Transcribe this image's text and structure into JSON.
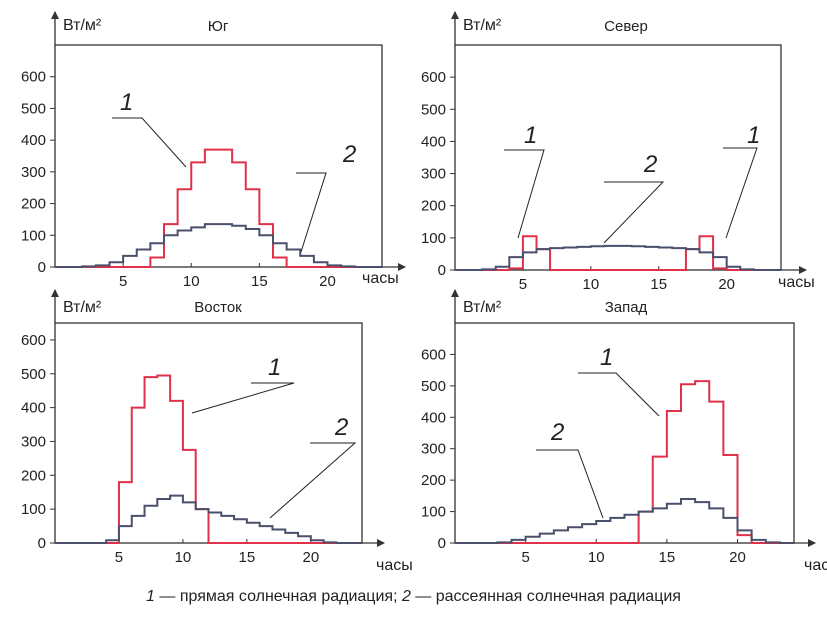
{
  "colors": {
    "direct": "#e0304a",
    "diffuse": "#4a4f6b",
    "axis": "#333333"
  },
  "caption": {
    "n1": "1",
    "t1": " — прямая солнечная радиация; ",
    "n2": "2",
    "t2": " — рассеянная солнечная радиация"
  },
  "chart_data": [
    {
      "type": "line",
      "title": "Юг",
      "ylabel": "Вт/м²",
      "xlabel": "часы",
      "xticks": [
        5,
        10,
        15,
        20
      ],
      "yticks": [
        0,
        100,
        200,
        300,
        400,
        500,
        600
      ],
      "ylim": [
        0,
        700
      ],
      "series_labels": [
        "1",
        "2"
      ],
      "series": [
        {
          "key": "1",
          "values": [
            0,
            0,
            0,
            0,
            0,
            0,
            0,
            30,
            135,
            245,
            330,
            370,
            370,
            330,
            245,
            135,
            30,
            0,
            0,
            0,
            0,
            0,
            0,
            0
          ]
        },
        {
          "key": "2",
          "values": [
            0,
            0,
            2,
            5,
            15,
            35,
            55,
            75,
            100,
            115,
            125,
            135,
            135,
            130,
            120,
            100,
            75,
            55,
            35,
            15,
            5,
            2,
            0,
            0
          ]
        }
      ]
    },
    {
      "type": "line",
      "title": "Север",
      "ylabel": "Вт/м²",
      "xlabel": "часы",
      "xticks": [
        5,
        10,
        15,
        20
      ],
      "yticks": [
        0,
        100,
        200,
        300,
        400,
        500,
        600
      ],
      "ylim": [
        0,
        700
      ],
      "series_labels": [
        "1",
        "1",
        "2"
      ],
      "series": [
        {
          "key": "1",
          "values": [
            0,
            0,
            0,
            0,
            5,
            105,
            65,
            0,
            0,
            0,
            0,
            0,
            0,
            0,
            0,
            0,
            0,
            65,
            105,
            5,
            0,
            0,
            0,
            0
          ]
        },
        {
          "key": "2",
          "values": [
            0,
            0,
            2,
            10,
            40,
            55,
            65,
            68,
            70,
            72,
            74,
            75,
            75,
            74,
            72,
            70,
            68,
            65,
            55,
            40,
            10,
            2,
            0,
            0
          ]
        }
      ]
    },
    {
      "type": "line",
      "title": "Восток",
      "ylabel": "Вт/м²",
      "xlabel": "часы",
      "xticks": [
        5,
        10,
        15,
        20
      ],
      "yticks": [
        0,
        100,
        200,
        300,
        400,
        500,
        600
      ],
      "ylim": [
        0,
        650
      ],
      "series_labels": [
        "1",
        "2"
      ],
      "series": [
        {
          "key": "1",
          "values": [
            0,
            0,
            0,
            0,
            0,
            180,
            400,
            490,
            495,
            420,
            275,
            100,
            0,
            0,
            0,
            0,
            0,
            0,
            0,
            0,
            0,
            0,
            0,
            0
          ]
        },
        {
          "key": "2",
          "values": [
            0,
            0,
            0,
            0,
            8,
            50,
            80,
            110,
            130,
            140,
            120,
            100,
            90,
            80,
            70,
            60,
            50,
            40,
            30,
            20,
            8,
            2,
            0,
            0
          ]
        }
      ]
    },
    {
      "type": "line",
      "title": "Запад",
      "ylabel": "Вт/м²",
      "xlabel": "часы",
      "xticks": [
        5,
        10,
        15,
        20
      ],
      "yticks": [
        0,
        100,
        200,
        300,
        400,
        500,
        600
      ],
      "ylim": [
        0,
        700
      ],
      "series_labels": [
        "1",
        "2"
      ],
      "series": [
        {
          "key": "1",
          "values": [
            0,
            0,
            0,
            0,
            0,
            0,
            0,
            0,
            0,
            0,
            0,
            0,
            0,
            100,
            275,
            420,
            505,
            515,
            450,
            280,
            25,
            0,
            0,
            0
          ]
        },
        {
          "key": "2",
          "values": [
            0,
            0,
            0,
            2,
            10,
            20,
            30,
            40,
            50,
            60,
            70,
            80,
            90,
            100,
            110,
            125,
            140,
            130,
            110,
            80,
            40,
            10,
            2,
            0
          ]
        }
      ]
    }
  ]
}
